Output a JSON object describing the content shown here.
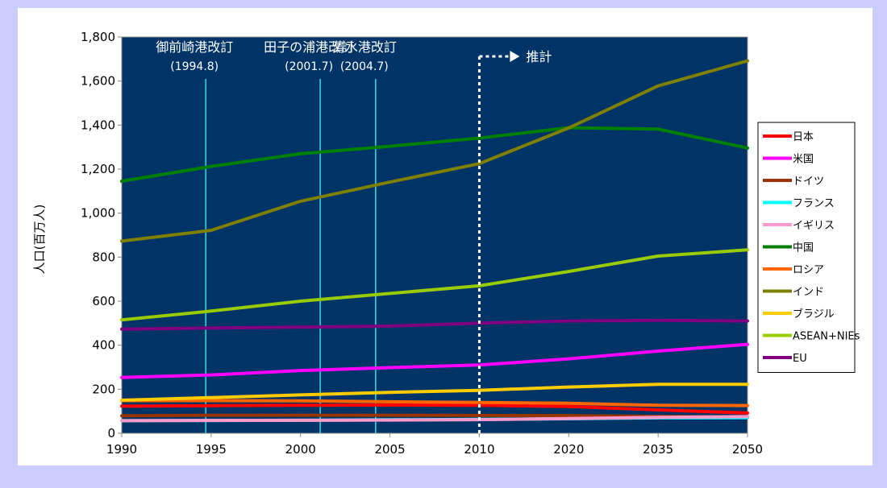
{
  "chart_data": {
    "type": "line",
    "ylabel": "人口(百万人)",
    "xlabel": "",
    "title": "",
    "categories": [
      "1990",
      "1995",
      "2000",
      "2005",
      "2010",
      "2020",
      "2035",
      "2050"
    ],
    "ylim": [
      0,
      1800
    ],
    "yticks": [
      "0",
      "200",
      "400",
      "600",
      "800",
      "1,000",
      "1,200",
      "1,400",
      "1,600",
      "1,800"
    ],
    "ytick_values": [
      0,
      200,
      400,
      600,
      800,
      1000,
      1200,
      1400,
      1600,
      1800
    ],
    "grid": false,
    "legend_position": "right",
    "plot_background": "#003366",
    "series": [
      {
        "name": "日本",
        "color": "#ff0000",
        "values": [
          123,
          125,
          127,
          128,
          127,
          122,
          106,
          92
        ]
      },
      {
        "name": "米国",
        "color": "#ff00ff",
        "values": [
          253,
          265,
          285,
          298,
          310,
          338,
          373,
          404
        ]
      },
      {
        "name": "ドイツ",
        "color": "#993300",
        "values": [
          79,
          82,
          82,
          82,
          81,
          80,
          77,
          73
        ]
      },
      {
        "name": "フランス",
        "color": "#00ffff",
        "values": [
          57,
          58,
          59,
          61,
          63,
          66,
          70,
          71
        ]
      },
      {
        "name": "イギリス",
        "color": "#ff99cc",
        "values": [
          57,
          58,
          59,
          60,
          62,
          67,
          72,
          76
        ]
      },
      {
        "name": "中国",
        "color": "#008000",
        "values": [
          1145,
          1212,
          1270,
          1304,
          1341,
          1388,
          1382,
          1296
        ]
      },
      {
        "name": "ロシア",
        "color": "#ff6600",
        "values": [
          148,
          148,
          147,
          143,
          140,
          136,
          127,
          126
        ]
      },
      {
        "name": "インド",
        "color": "#808000",
        "values": [
          873,
          922,
          1054,
          1141,
          1225,
          1387,
          1578,
          1692
        ]
      },
      {
        "name": "ブラジル",
        "color": "#ffcc00",
        "values": [
          150,
          162,
          174,
          186,
          195,
          210,
          222,
          222
        ]
      },
      {
        "name": "ASEAN+NIEs",
        "color": "#99cc00",
        "values": [
          515,
          555,
          600,
          635,
          670,
          735,
          805,
          833
        ]
      },
      {
        "name": "EU",
        "color": "#800080",
        "values": [
          473,
          478,
          482,
          487,
          500,
          510,
          513,
          510
        ]
      }
    ],
    "annotations": [
      {
        "title": "御前崎港改訂",
        "date": "(1994.8)",
        "x_value": 1994.7
      },
      {
        "title": "田子の浦港改訂",
        "date": "(2001.7)",
        "x_value": 2001.1
      },
      {
        "title": "清水港改訂",
        "date": "(2004.7)",
        "x_value": 2004.2
      }
    ],
    "forecast_marker": {
      "label": "推計",
      "x_category": "2010"
    }
  }
}
